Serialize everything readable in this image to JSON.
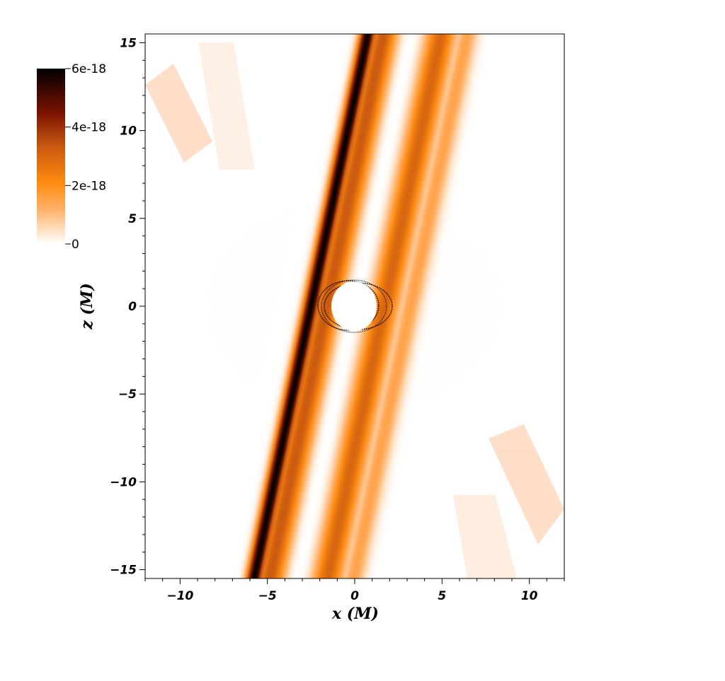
{
  "chart_data": {
    "type": "heatmap",
    "xlabel": "x (M)",
    "ylabel": "z (M)",
    "xlim": [
      -12,
      12
    ],
    "ylim": [
      -15.5,
      15.5
    ],
    "xticks": [
      {
        "value": -10,
        "label": "−10"
      },
      {
        "value": -5,
        "label": "−5"
      },
      {
        "value": 0,
        "label": "0"
      },
      {
        "value": 5,
        "label": "5"
      },
      {
        "value": 10,
        "label": "10"
      }
    ],
    "yticks": [
      {
        "value": -15,
        "label": "−15"
      },
      {
        "value": -10,
        "label": "−10"
      },
      {
        "value": -5,
        "label": "−5"
      },
      {
        "value": 0,
        "label": "0"
      },
      {
        "value": 5,
        "label": "5"
      },
      {
        "value": 10,
        "label": "10"
      },
      {
        "value": 15,
        "label": "15"
      }
    ],
    "colorbar": {
      "range": [
        0,
        6e-18
      ],
      "ticks": [
        {
          "value": 0,
          "label": "0"
        },
        {
          "value": 2e-18,
          "label": "2e-18"
        },
        {
          "value": 4e-18,
          "label": "4e-18"
        },
        {
          "value": 6e-18,
          "label": "6e-18"
        }
      ],
      "colormap": [
        "#ffffff",
        "#ffb066",
        "#ff8a10",
        "#c95a10",
        "#7a1200",
        "#000000"
      ]
    },
    "jet": {
      "tilt_slope_dx_per_dz": 0.21,
      "bands": [
        {
          "offset_x": -2.5,
          "width": 0.45,
          "level": 1.0
        },
        {
          "offset_x": -1.6,
          "width": 0.8,
          "level": 0.55
        },
        {
          "offset_x": 0.0,
          "width": 0.25,
          "level": 0.02
        },
        {
          "offset_x": 1.7,
          "width": 0.85,
          "level": 0.5
        },
        {
          "offset_x": 3.2,
          "width": 0.6,
          "level": 0.25
        }
      ]
    },
    "horizon": {
      "center": [
        0,
        0
      ],
      "radius_x": 1.3,
      "radius_z": 1.4
    }
  }
}
